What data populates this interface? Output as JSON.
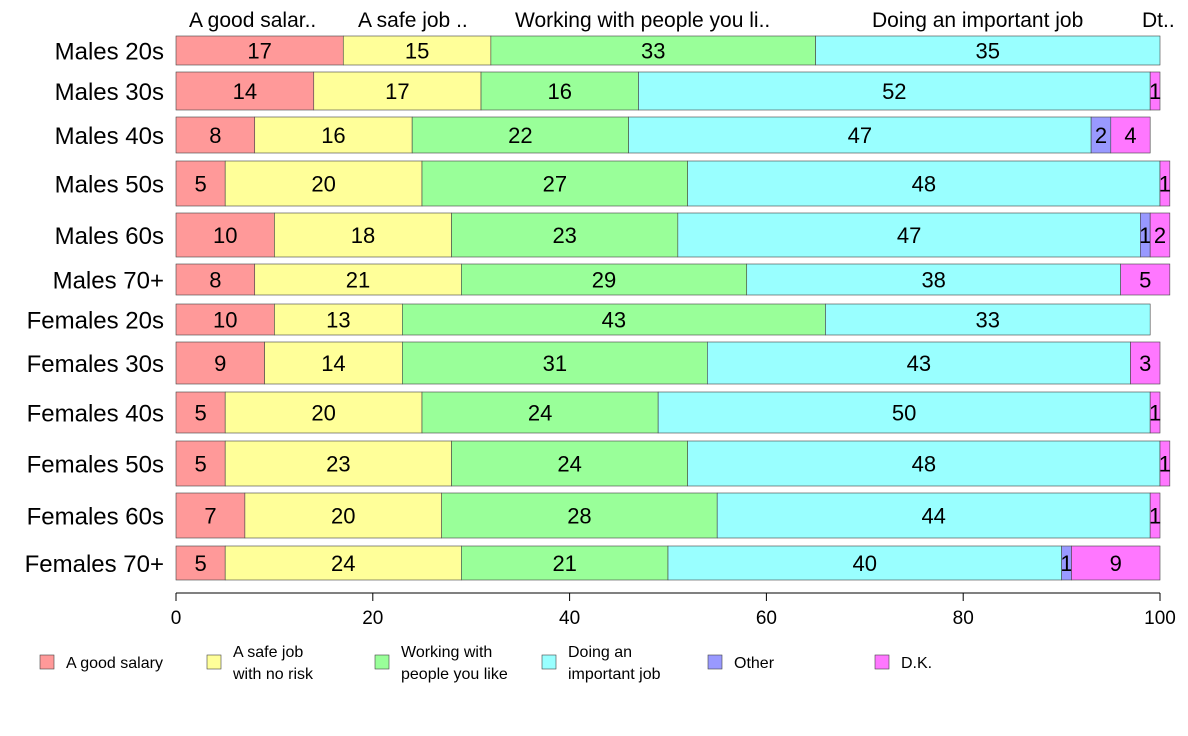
{
  "chart_data": {
    "type": "bar",
    "orientation": "horizontal",
    "stacked": true,
    "categories": [
      "Males 20s",
      "Males 30s",
      "Males 40s",
      "Males 50s",
      "Males 60s",
      "Males 70+",
      "Females 20s",
      "Females 30s",
      "Females 40s",
      "Females 50s",
      "Females 60s",
      "Females 70+"
    ],
    "series": [
      {
        "name": "A good salary",
        "color": "#ff9999",
        "values": [
          17,
          14,
          8,
          5,
          10,
          8,
          10,
          9,
          5,
          5,
          7,
          5
        ]
      },
      {
        "name": "A safe job with no risk",
        "color": "#ffff99",
        "values": [
          15,
          17,
          16,
          20,
          18,
          21,
          13,
          14,
          20,
          23,
          20,
          24
        ]
      },
      {
        "name": "Working with people you like",
        "color": "#99ff99",
        "values": [
          33,
          16,
          22,
          27,
          23,
          29,
          43,
          31,
          24,
          24,
          28,
          21
        ]
      },
      {
        "name": "Doing an important job",
        "color": "#99ffff",
        "values": [
          35,
          52,
          47,
          48,
          47,
          38,
          33,
          43,
          50,
          48,
          44,
          40
        ]
      },
      {
        "name": "Other",
        "color": "#9999ff",
        "values": [
          0,
          0,
          2,
          0,
          1,
          0,
          0,
          0,
          0,
          0,
          0,
          1
        ]
      },
      {
        "name": "D.K.",
        "color": "#ff77ff",
        "values": [
          0,
          1,
          4,
          1,
          2,
          5,
          0,
          3,
          1,
          1,
          1,
          9
        ]
      }
    ],
    "top_labels": [
      "A good salar..",
      "A safe job ..",
      "Working with people you li..",
      "Doing an important job",
      "Dt.."
    ],
    "legend": [
      {
        "label": "A good salary",
        "color": "#ff9999"
      },
      {
        "label": "A safe job\nwith no risk",
        "color": "#ffff99"
      },
      {
        "label": "Working with\npeople you like",
        "color": "#99ff99"
      },
      {
        "label": "Doing an\nimportant job",
        "color": "#99ffff"
      },
      {
        "label": "Other",
        "color": "#9999ff"
      },
      {
        "label": "D.K.",
        "color": "#ff77ff"
      }
    ],
    "legend_position": "bottom",
    "xlim": [
      0,
      100
    ],
    "xticks": [
      "0",
      "20",
      "40",
      "60",
      "80",
      "100"
    ],
    "grid": false,
    "title": "",
    "xlabel": "",
    "ylabel": ""
  }
}
